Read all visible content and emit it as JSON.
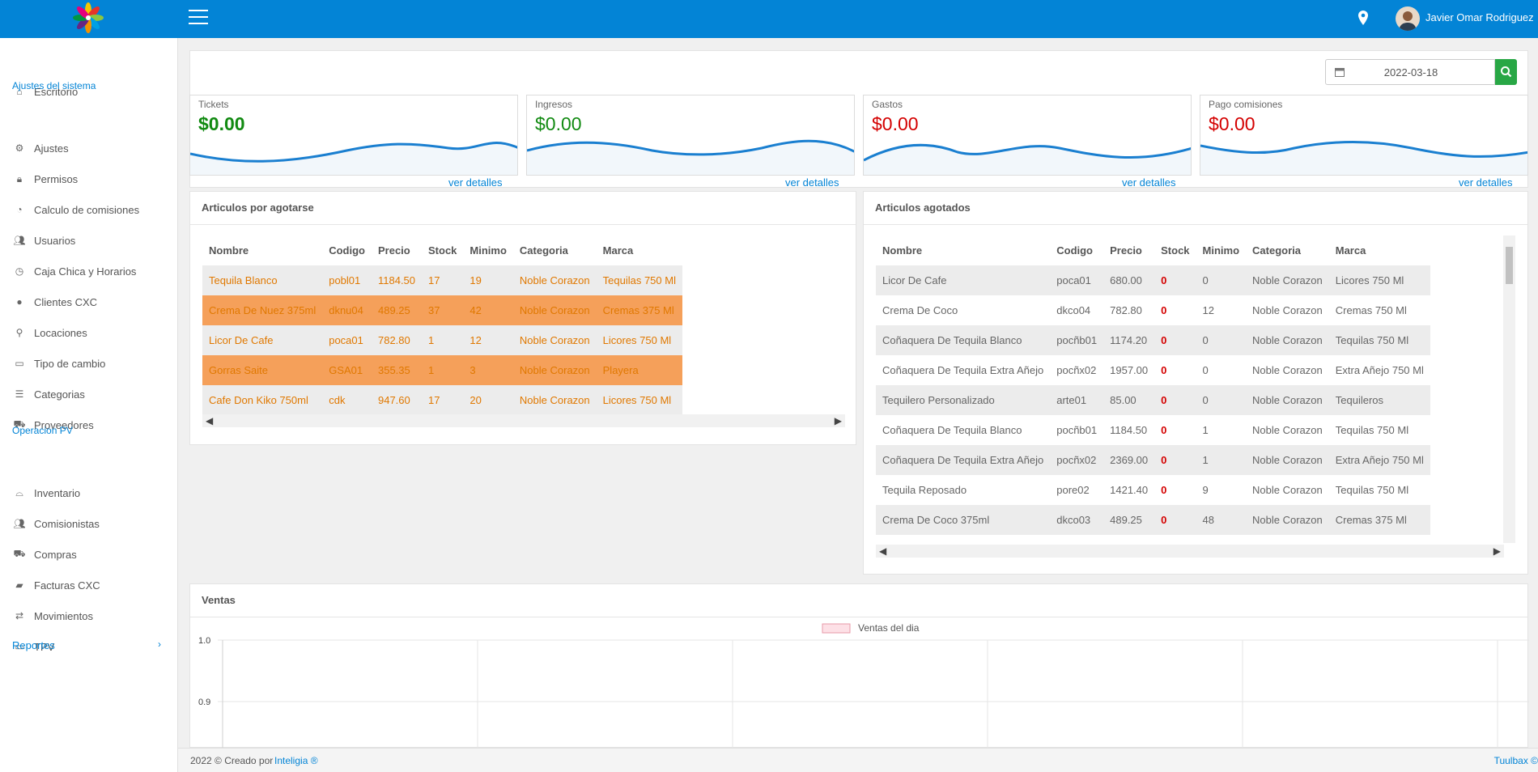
{
  "header": {
    "user_name": "Javier Omar Rodriguez",
    "accent": "#0384d6"
  },
  "sidebar": {
    "items": [
      {
        "label": "Escritorio",
        "icon": "home-icon"
      },
      {
        "label": "Ajustes",
        "icon": "gear-icon"
      },
      {
        "label": "Permisos",
        "icon": "lock-icon"
      },
      {
        "label": "Calculo de comisiones",
        "icon": "gauge-icon"
      },
      {
        "label": "Usuarios",
        "icon": "users-icon"
      },
      {
        "label": "Caja Chica y Horarios",
        "icon": "clock-icon"
      },
      {
        "label": "Clientes CXC",
        "icon": "user-icon"
      },
      {
        "label": "Locaciones",
        "icon": "map-pin-icon"
      },
      {
        "label": "Tipo de cambio",
        "icon": "money-icon"
      },
      {
        "label": "Categorias",
        "icon": "list-icon"
      },
      {
        "label": "Proveedores",
        "icon": "cart-icon"
      },
      {
        "label": "Inventario",
        "icon": "basket-icon"
      },
      {
        "label": "Comisionistas",
        "icon": "users-icon"
      },
      {
        "label": "Compras",
        "icon": "cart-icon"
      },
      {
        "label": "Facturas CXC",
        "icon": "folder-icon"
      },
      {
        "label": "Movimientos",
        "icon": "exchange-icon"
      },
      {
        "label": "TPV",
        "icon": "monitor-icon"
      }
    ],
    "section_system": "Ajustes del sistema",
    "section_pv": "Operacion PV",
    "section_reports": "Reportes"
  },
  "filter": {
    "date": "2022-03-18"
  },
  "cards": [
    {
      "label": "Tickets",
      "amount": "$0.00",
      "color": "#118a11",
      "link": "ver detalles"
    },
    {
      "label": "Ingresos",
      "amount": "$0.00",
      "color": "#118a11",
      "link": "ver detalles"
    },
    {
      "label": "Gastos",
      "amount": "$0.00",
      "color": "#d40000",
      "link": "ver detalles"
    },
    {
      "label": "Pago comisiones",
      "amount": "$0.00",
      "color": "#d40000",
      "link": "ver detalles"
    }
  ],
  "low_stock": {
    "title": "Articulos por agotarse",
    "headers": [
      "Nombre",
      "Codigo",
      "Precio",
      "Stock",
      "Minimo",
      "Categoria",
      "Marca"
    ],
    "rows": [
      [
        "Tequila Blanco",
        "pobl01",
        "1184.50",
        "17",
        "19",
        "Noble Corazon",
        "Tequilas 750 Ml"
      ],
      [
        "Crema De Nuez 375ml",
        "dknu04",
        "489.25",
        "37",
        "42",
        "Noble Corazon",
        "Cremas 375 Ml"
      ],
      [
        "Licor De Cafe",
        "poca01",
        "782.80",
        "1",
        "12",
        "Noble Corazon",
        "Licores 750 Ml"
      ],
      [
        "Gorras Saite",
        "GSA01",
        "355.35",
        "1",
        "3",
        "Noble Corazon",
        "Playera"
      ],
      [
        "Cafe Don Kiko 750ml",
        "cdk",
        "947.60",
        "17",
        "20",
        "Noble Corazon",
        "Licores 750 Ml"
      ]
    ]
  },
  "out_of_stock": {
    "title": "Articulos agotados",
    "headers": [
      "Nombre",
      "Codigo",
      "Precio",
      "Stock",
      "Minimo",
      "Categoria",
      "Marca"
    ],
    "rows": [
      [
        "Licor De Cafe",
        "poca01",
        "680.00",
        "0",
        "0",
        "Noble Corazon",
        "Licores 750 Ml"
      ],
      [
        "Crema De Coco",
        "dkco04",
        "782.80",
        "0",
        "12",
        "Noble Corazon",
        "Cremas 750 Ml"
      ],
      [
        "Coñaquera De Tequila Blanco",
        "pocñb01",
        "1174.20",
        "0",
        "0",
        "Noble Corazon",
        "Tequilas 750 Ml"
      ],
      [
        "Coñaquera De Tequila Extra Añejo",
        "pocñx02",
        "1957.00",
        "0",
        "0",
        "Noble Corazon",
        "Extra Añejo 750 Ml"
      ],
      [
        "Tequilero Personalizado",
        "arte01",
        "85.00",
        "0",
        "0",
        "Noble Corazon",
        "Tequileros"
      ],
      [
        "Coñaquera De Tequila Blanco",
        "pocñb01",
        "1184.50",
        "0",
        "1",
        "Noble Corazon",
        "Tequilas 750 Ml"
      ],
      [
        "Coñaquera De Tequila Extra Añejo",
        "pocñx02",
        "2369.00",
        "0",
        "1",
        "Noble Corazon",
        "Extra Añejo 750 Ml"
      ],
      [
        "Tequila Reposado",
        "pore02",
        "1421.40",
        "0",
        "9",
        "Noble Corazon",
        "Tequilas 750 Ml"
      ],
      [
        "Crema De Coco 375ml",
        "dkco03",
        "489.25",
        "0",
        "48",
        "Noble Corazon",
        "Cremas 375 Ml"
      ]
    ]
  },
  "sales": {
    "title": "Ventas",
    "chart_data": {
      "type": "line",
      "title": "",
      "series": [
        {
          "name": "Ventas del dia",
          "values": []
        }
      ],
      "yticks": [
        "1.0",
        "0.9"
      ],
      "legend": "top-center",
      "grid": true
    }
  },
  "footer": {
    "left": "2022 © Creado por",
    "brand": "Inteligia ®",
    "right": "Tuulbax ©"
  }
}
